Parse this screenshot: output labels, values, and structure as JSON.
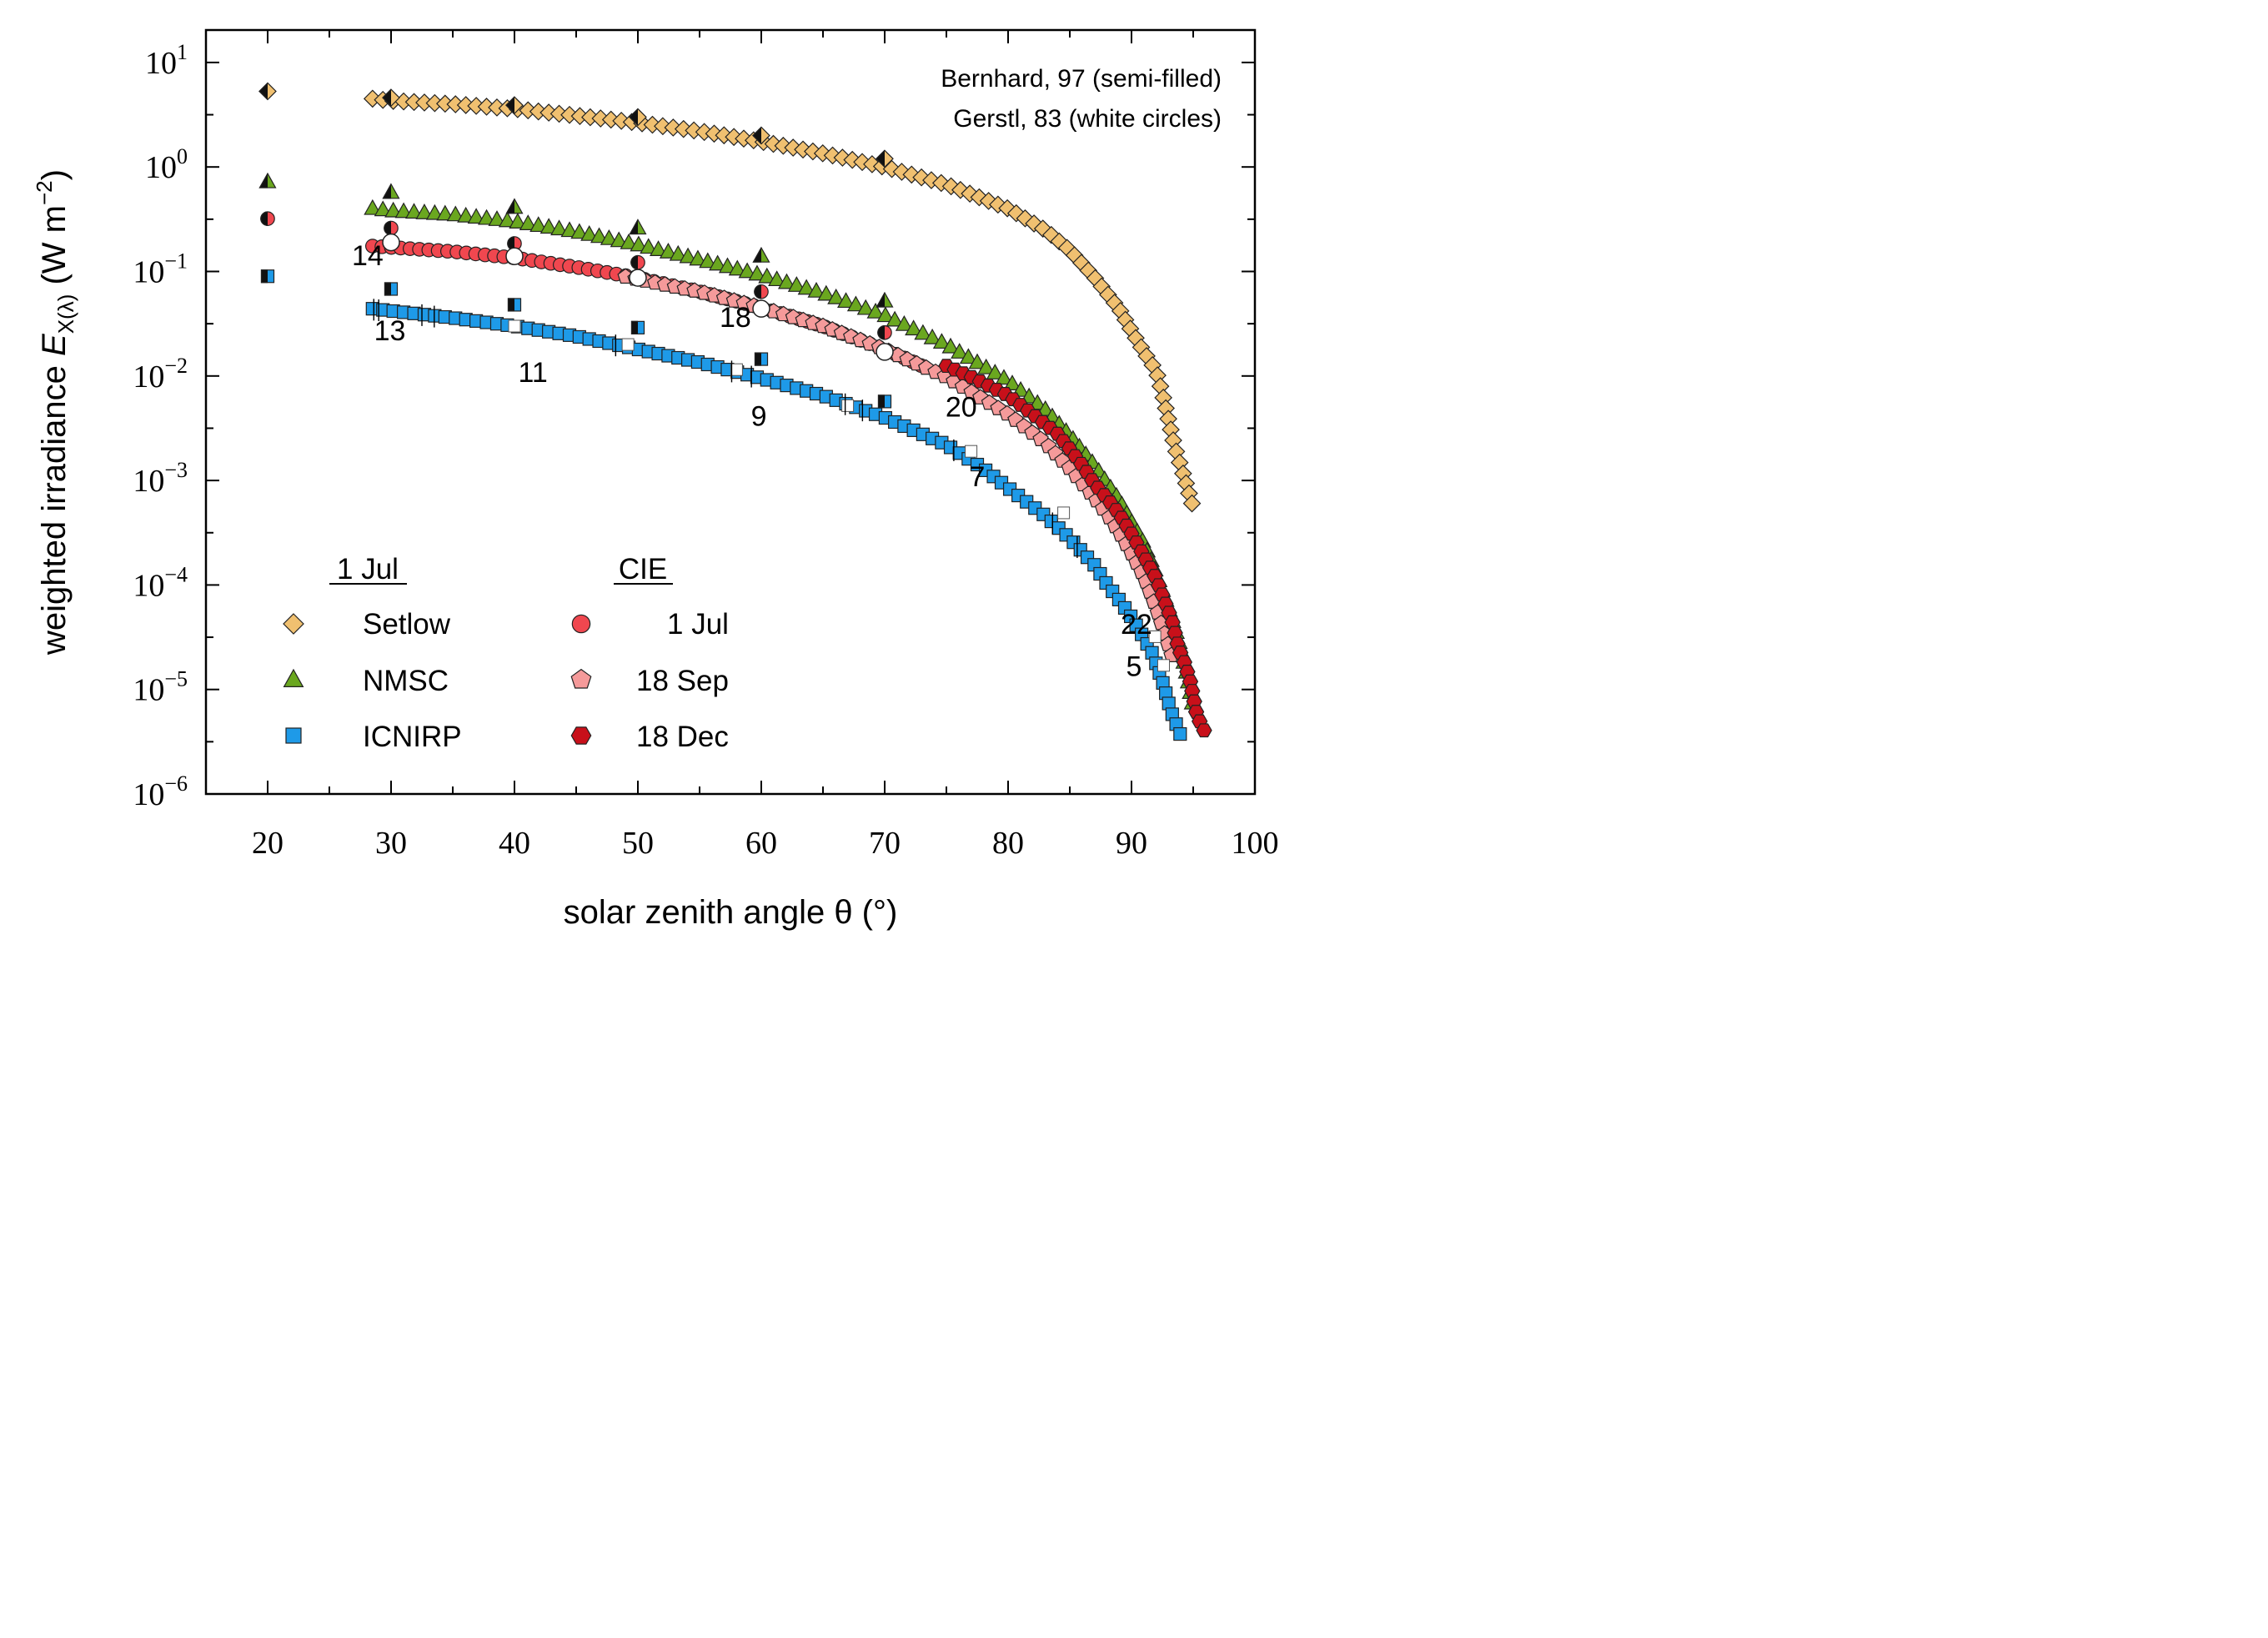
{
  "chart_data": {
    "type": "scatter",
    "x_scale": "linear",
    "y_scale": "log",
    "xlim": [
      15,
      100
    ],
    "ylim": [
      1e-06,
      20
    ],
    "xlabel": "solar zenith angle θ (°)",
    "ylabel": {
      "prefix": "weighted irradiance ",
      "symbol": "E",
      "subscript": "X(λ)",
      "unit_open": " (W m",
      "unit_sup": "−2",
      "unit_close": ")"
    },
    "xticks": [
      20,
      30,
      40,
      50,
      60,
      70,
      80,
      90,
      100
    ],
    "yticks": [
      {
        "value": 10,
        "base": "10",
        "exp": "1"
      },
      {
        "value": 1,
        "base": "10",
        "exp": "0"
      },
      {
        "value": 0.1,
        "base": "10",
        "exp": "−1"
      },
      {
        "value": 0.01,
        "base": "10",
        "exp": "−2"
      },
      {
        "value": 0.001,
        "base": "10",
        "exp": "−3"
      },
      {
        "value": 0.0001,
        "base": "10",
        "exp": "−4"
      },
      {
        "value": 1e-05,
        "base": "10",
        "exp": "−5"
      },
      {
        "value": 1e-06,
        "base": "10",
        "exp": "−6"
      }
    ],
    "annotations": [
      "Bernhard, 97 (semi-filled)",
      "Gerstl, 83 (white circles)"
    ],
    "legend": {
      "left_header": "1 Jul",
      "right_header": "CIE",
      "left_entries": [
        "Setlow",
        "NMSC",
        "ICNIRP"
      ],
      "right_entries": [
        "1 Jul",
        "18 Sep",
        "18 Dec"
      ],
      "placement": "bottom-left"
    },
    "hour_labels": [
      {
        "text": "14",
        "x": 28.1,
        "y": 0.115
      },
      {
        "text": "13",
        "x": 29.9,
        "y": 0.022
      },
      {
        "text": "11",
        "x": 41.5,
        "y": 0.0088
      },
      {
        "text": "18",
        "x": 57.9,
        "y": 0.0295
      },
      {
        "text": "9",
        "x": 59.8,
        "y": 0.00335
      },
      {
        "text": "20",
        "x": 76.2,
        "y": 0.0041
      },
      {
        "text": "7",
        "x": 77.5,
        "y": 0.00088
      },
      {
        "text": "22",
        "x": 90.4,
        "y": 3.4e-05
      },
      {
        "text": "5",
        "x": 90.2,
        "y": 1.35e-05
      }
    ],
    "series": [
      {
        "name": "Setlow",
        "marker": "diamond",
        "color": "#f0c070",
        "curve": [
          [
            28.5,
            4.5
          ],
          [
            30,
            4.3
          ],
          [
            35,
            4.0
          ],
          [
            40,
            3.6
          ],
          [
            45,
            3.1
          ],
          [
            50,
            2.65
          ],
          [
            55,
            2.2
          ],
          [
            60,
            1.75
          ],
          [
            65,
            1.35
          ],
          [
            70,
            1.0
          ],
          [
            75,
            0.68
          ],
          [
            80,
            0.4
          ],
          [
            83,
            0.25
          ],
          [
            85,
            0.16
          ],
          [
            87,
            0.088
          ],
          [
            88,
            0.062
          ],
          [
            89,
            0.044
          ],
          [
            90,
            0.027
          ],
          [
            91,
            0.017
          ],
          [
            92,
            0.0112
          ],
          [
            92.5,
            0.0068
          ],
          [
            93,
            0.0038
          ],
          [
            93.5,
            0.0021
          ],
          [
            94.3,
            0.00105
          ],
          [
            95,
            0.00055
          ]
        ]
      },
      {
        "name": "NMSC",
        "marker": "triangle",
        "color": "#6aa71f",
        "curve": [
          [
            28.5,
            0.4
          ],
          [
            30,
            0.38
          ],
          [
            35,
            0.35
          ],
          [
            40,
            0.3
          ],
          [
            45,
            0.24
          ],
          [
            50,
            0.18
          ],
          [
            55,
            0.13
          ],
          [
            60,
            0.092
          ],
          [
            65,
            0.062
          ],
          [
            70,
            0.038
          ],
          [
            75,
            0.02
          ],
          [
            80,
            0.009
          ],
          [
            83,
            0.0048
          ],
          [
            85,
            0.0027
          ],
          [
            87,
            0.0014
          ],
          [
            88,
            0.00095
          ],
          [
            89,
            0.00065
          ],
          [
            90,
            0.0004
          ],
          [
            91,
            0.00025
          ],
          [
            92,
            0.00013
          ],
          [
            93,
            6e-05
          ],
          [
            93.8,
            3e-05
          ],
          [
            94.5,
            1.4e-05
          ],
          [
            95,
            6.8e-06
          ]
        ]
      },
      {
        "name": "ICNIRP",
        "marker": "square",
        "color": "#1e9ae8",
        "curve": [
          [
            28.5,
            0.044
          ],
          [
            30,
            0.042
          ],
          [
            35,
            0.036
          ],
          [
            40,
            0.03
          ],
          [
            45,
            0.024
          ],
          [
            50,
            0.018
          ],
          [
            55,
            0.0135
          ],
          [
            60,
            0.0095
          ],
          [
            65,
            0.0065
          ],
          [
            70,
            0.004
          ],
          [
            75,
            0.0022
          ],
          [
            78,
            0.0013
          ],
          [
            80,
            0.00085
          ],
          [
            83,
            0.00046
          ],
          [
            85,
            0.00028
          ],
          [
            87,
            0.000155
          ],
          [
            88,
            0.000102
          ],
          [
            89,
            7.2e-05
          ],
          [
            90,
            4.9e-05
          ],
          [
            91,
            3.1e-05
          ],
          [
            91.7,
            2.2e-05
          ],
          [
            92.5,
            1.2e-05
          ],
          [
            93.2,
            6.2e-06
          ],
          [
            94,
            3.6e-06
          ]
        ]
      },
      {
        "name": "1 Jul",
        "marker": "circle",
        "color": "#f0474f",
        "curve": [
          [
            28.5,
            0.175
          ],
          [
            30,
            0.17
          ],
          [
            35,
            0.155
          ],
          [
            40,
            0.135
          ],
          [
            45,
            0.11
          ],
          [
            50,
            0.087
          ],
          [
            55,
            0.064
          ],
          [
            60,
            0.045
          ],
          [
            65,
            0.03
          ],
          [
            70,
            0.018
          ],
          [
            73,
            0.0125
          ]
        ]
      },
      {
        "name": "18 Sep",
        "marker": "pentagon",
        "color": "#f59a9a",
        "curve": [
          [
            49,
            0.089
          ],
          [
            55,
            0.064
          ],
          [
            60,
            0.045
          ],
          [
            65,
            0.03
          ],
          [
            70,
            0.018
          ],
          [
            75,
            0.0098
          ],
          [
            80,
            0.0043
          ],
          [
            83,
            0.0023
          ],
          [
            85,
            0.0013
          ],
          [
            87,
            0.00068
          ],
          [
            88,
            0.00048
          ],
          [
            89,
            0.00032
          ],
          [
            90,
            0.0002
          ],
          [
            91,
            0.00012
          ],
          [
            92,
            6e-05
          ],
          [
            92.8,
            3.1e-05
          ],
          [
            93.5,
            1.7e-05
          ]
        ]
      },
      {
        "name": "18 Dec",
        "marker": "hexagon",
        "color": "#c8101a",
        "curve": [
          [
            75,
            0.0125
          ],
          [
            77,
            0.0098
          ],
          [
            80,
            0.0065
          ],
          [
            82,
            0.0043
          ],
          [
            84,
            0.0028
          ],
          [
            85,
            0.002
          ],
          [
            86,
            0.0014
          ],
          [
            87,
            0.00093
          ],
          [
            88,
            0.00068
          ],
          [
            89,
            0.00048
          ],
          [
            90,
            0.00031
          ],
          [
            91,
            0.00019
          ],
          [
            92,
            0.000115
          ],
          [
            92.7,
            6.9e-05
          ],
          [
            93.3,
            4.5e-05
          ],
          [
            93.8,
            2.5e-05
          ],
          [
            94.3,
            1.8e-05
          ],
          [
            94.8,
            1.15e-05
          ],
          [
            95.3,
            5.6e-06
          ],
          [
            96,
            3.8e-06
          ]
        ]
      }
    ],
    "bernhard_points": [
      {
        "series": "Setlow",
        "marker": "diamond",
        "points": [
          [
            20,
            5.3
          ],
          [
            30,
            4.6
          ],
          [
            40,
            3.9
          ],
          [
            50,
            3.0
          ],
          [
            60,
            2.0
          ],
          [
            70,
            1.2
          ]
        ]
      },
      {
        "series": "NMSC",
        "marker": "triangle",
        "points": [
          [
            20,
            0.72
          ],
          [
            30,
            0.57
          ],
          [
            40,
            0.41
          ],
          [
            50,
            0.26
          ],
          [
            60,
            0.14
          ],
          [
            70,
            0.052
          ]
        ]
      },
      {
        "series": "1 Jul",
        "marker": "circle",
        "points": [
          [
            20,
            0.32
          ],
          [
            30,
            0.26
          ],
          [
            40,
            0.185
          ],
          [
            50,
            0.122
          ],
          [
            60,
            0.064
          ],
          [
            70,
            0.026
          ]
        ]
      },
      {
        "series": "ICNIRP",
        "marker": "square",
        "points": [
          [
            20,
            0.09
          ],
          [
            30,
            0.068
          ],
          [
            40,
            0.048
          ],
          [
            50,
            0.029
          ],
          [
            60,
            0.0145
          ],
          [
            70,
            0.0057
          ]
        ]
      }
    ],
    "gerstl_points": [
      [
        30,
        0.19
      ],
      [
        40,
        0.14
      ],
      [
        50,
        0.087
      ],
      [
        60,
        0.044
      ],
      [
        70,
        0.017
      ]
    ],
    "white_square_points": [
      [
        40,
        0.03
      ],
      [
        49.2,
        0.02
      ],
      [
        58,
        0.0115
      ],
      [
        67,
        0.0052
      ],
      [
        77,
        0.0019
      ],
      [
        84.5,
        0.00049
      ],
      [
        91.9,
        3.2e-05
      ],
      [
        92.6,
        1.7e-05
      ]
    ]
  }
}
